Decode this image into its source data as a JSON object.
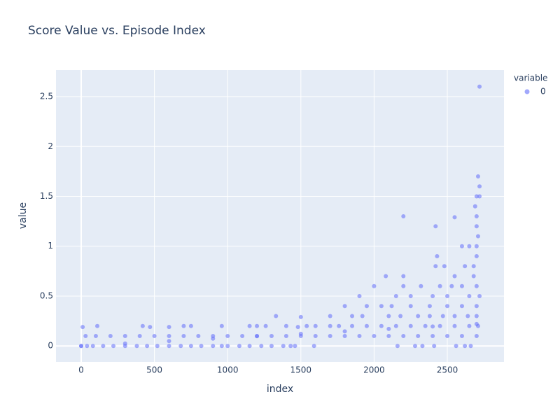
{
  "chart_data": {
    "type": "scatter",
    "title": "Score Value vs. Episode Index",
    "x_label": "index",
    "y_label": "value",
    "legend_title": "variable",
    "series": [
      {
        "name": "0",
        "color": "#636efa",
        "x": [
          0,
          40,
          80,
          150,
          220,
          300,
          380,
          450,
          520,
          600,
          680,
          750,
          820,
          900,
          960,
          1000,
          1080,
          1150,
          1230,
          1300,
          1380,
          1430,
          1460,
          1590,
          2160,
          2280,
          2330,
          2410,
          2560,
          2620,
          2660,
          30,
          100,
          200,
          300,
          400,
          500,
          600,
          700,
          800,
          900,
          1000,
          1100,
          1200,
          1300,
          1400,
          1500,
          1600,
          1700,
          1800,
          1900,
          2000,
          2100,
          2200,
          2300,
          2400,
          2500,
          2600,
          2700,
          0,
          300,
          600,
          900,
          1200,
          1500,
          1800,
          2100,
          2400,
          2700,
          10,
          110,
          420,
          470,
          600,
          700,
          750,
          960,
          1150,
          1200,
          1260,
          1400,
          1480,
          1540,
          1600,
          1700,
          1760,
          1850,
          1950,
          2050,
          2150,
          2250,
          2350,
          2450,
          2550,
          2650,
          2710,
          1330,
          1500,
          1700,
          1850,
          1920,
          2100,
          2180,
          2300,
          2380,
          2470,
          2550,
          2640,
          2700,
          1800,
          1950,
          2050,
          2120,
          2250,
          2380,
          2500,
          2600,
          2700,
          1900,
          2150,
          2250,
          2400,
          2500,
          2650,
          2720,
          2000,
          2200,
          2320,
          2450,
          2530,
          2600,
          2700,
          2080,
          2200,
          2550,
          2680,
          2420,
          2480,
          2620,
          2680,
          2430,
          2700,
          2600,
          2650,
          2700,
          2710,
          2420,
          2700,
          2200,
          2550,
          2700,
          2690,
          2700,
          2720,
          2720,
          2710,
          2720
        ],
        "y": [
          0,
          0,
          0,
          0,
          0,
          0,
          0,
          0,
          0,
          0,
          0,
          0,
          0,
          0,
          0,
          0,
          0,
          0,
          0,
          0,
          0,
          0,
          0,
          0,
          0,
          0,
          0,
          0,
          0,
          0,
          0,
          0.1,
          0.1,
          0.1,
          0.1,
          0.1,
          0.1,
          0.1,
          0.1,
          0.1,
          0.1,
          0.1,
          0.1,
          0.1,
          0.1,
          0.1,
          0.1,
          0.1,
          0.1,
          0.1,
          0.1,
          0.1,
          0.1,
          0.1,
          0.1,
          0.1,
          0.1,
          0.1,
          0.1,
          0,
          0.024,
          0.049,
          0.073,
          0.098,
          0.122,
          0.146,
          0.171,
          0.195,
          0.22,
          0.19,
          0.2,
          0.2,
          0.19,
          0.19,
          0.2,
          0.2,
          0.2,
          0.2,
          0.2,
          0.2,
          0.2,
          0.19,
          0.2,
          0.2,
          0.2,
          0.2,
          0.2,
          0.2,
          0.2,
          0.2,
          0.2,
          0.2,
          0.2,
          0.2,
          0.2,
          0.2,
          0.3,
          0.29,
          0.3,
          0.3,
          0.3,
          0.3,
          0.3,
          0.3,
          0.3,
          0.3,
          0.3,
          0.3,
          0.3,
          0.4,
          0.4,
          0.4,
          0.4,
          0.4,
          0.4,
          0.4,
          0.4,
          0.4,
          0.5,
          0.5,
          0.5,
          0.5,
          0.5,
          0.5,
          0.5,
          0.6,
          0.6,
          0.6,
          0.6,
          0.6,
          0.6,
          0.6,
          0.7,
          0.7,
          0.7,
          0.7,
          0.8,
          0.8,
          0.8,
          0.8,
          0.9,
          0.9,
          1,
          1,
          1,
          1.1,
          1.2,
          1.2,
          1.3,
          1.29,
          1.3,
          1.4,
          1.5,
          1.5,
          1.6,
          1.7,
          2.6
        ]
      }
    ],
    "xlim": [
      -172,
      2887
    ],
    "ylim": [
      -0.16,
      2.767
    ],
    "xticks": [
      0,
      500,
      1000,
      1500,
      2000,
      2500
    ],
    "yticks": [
      0,
      0.5,
      1,
      1.5,
      2,
      2.5
    ],
    "grid": true
  }
}
